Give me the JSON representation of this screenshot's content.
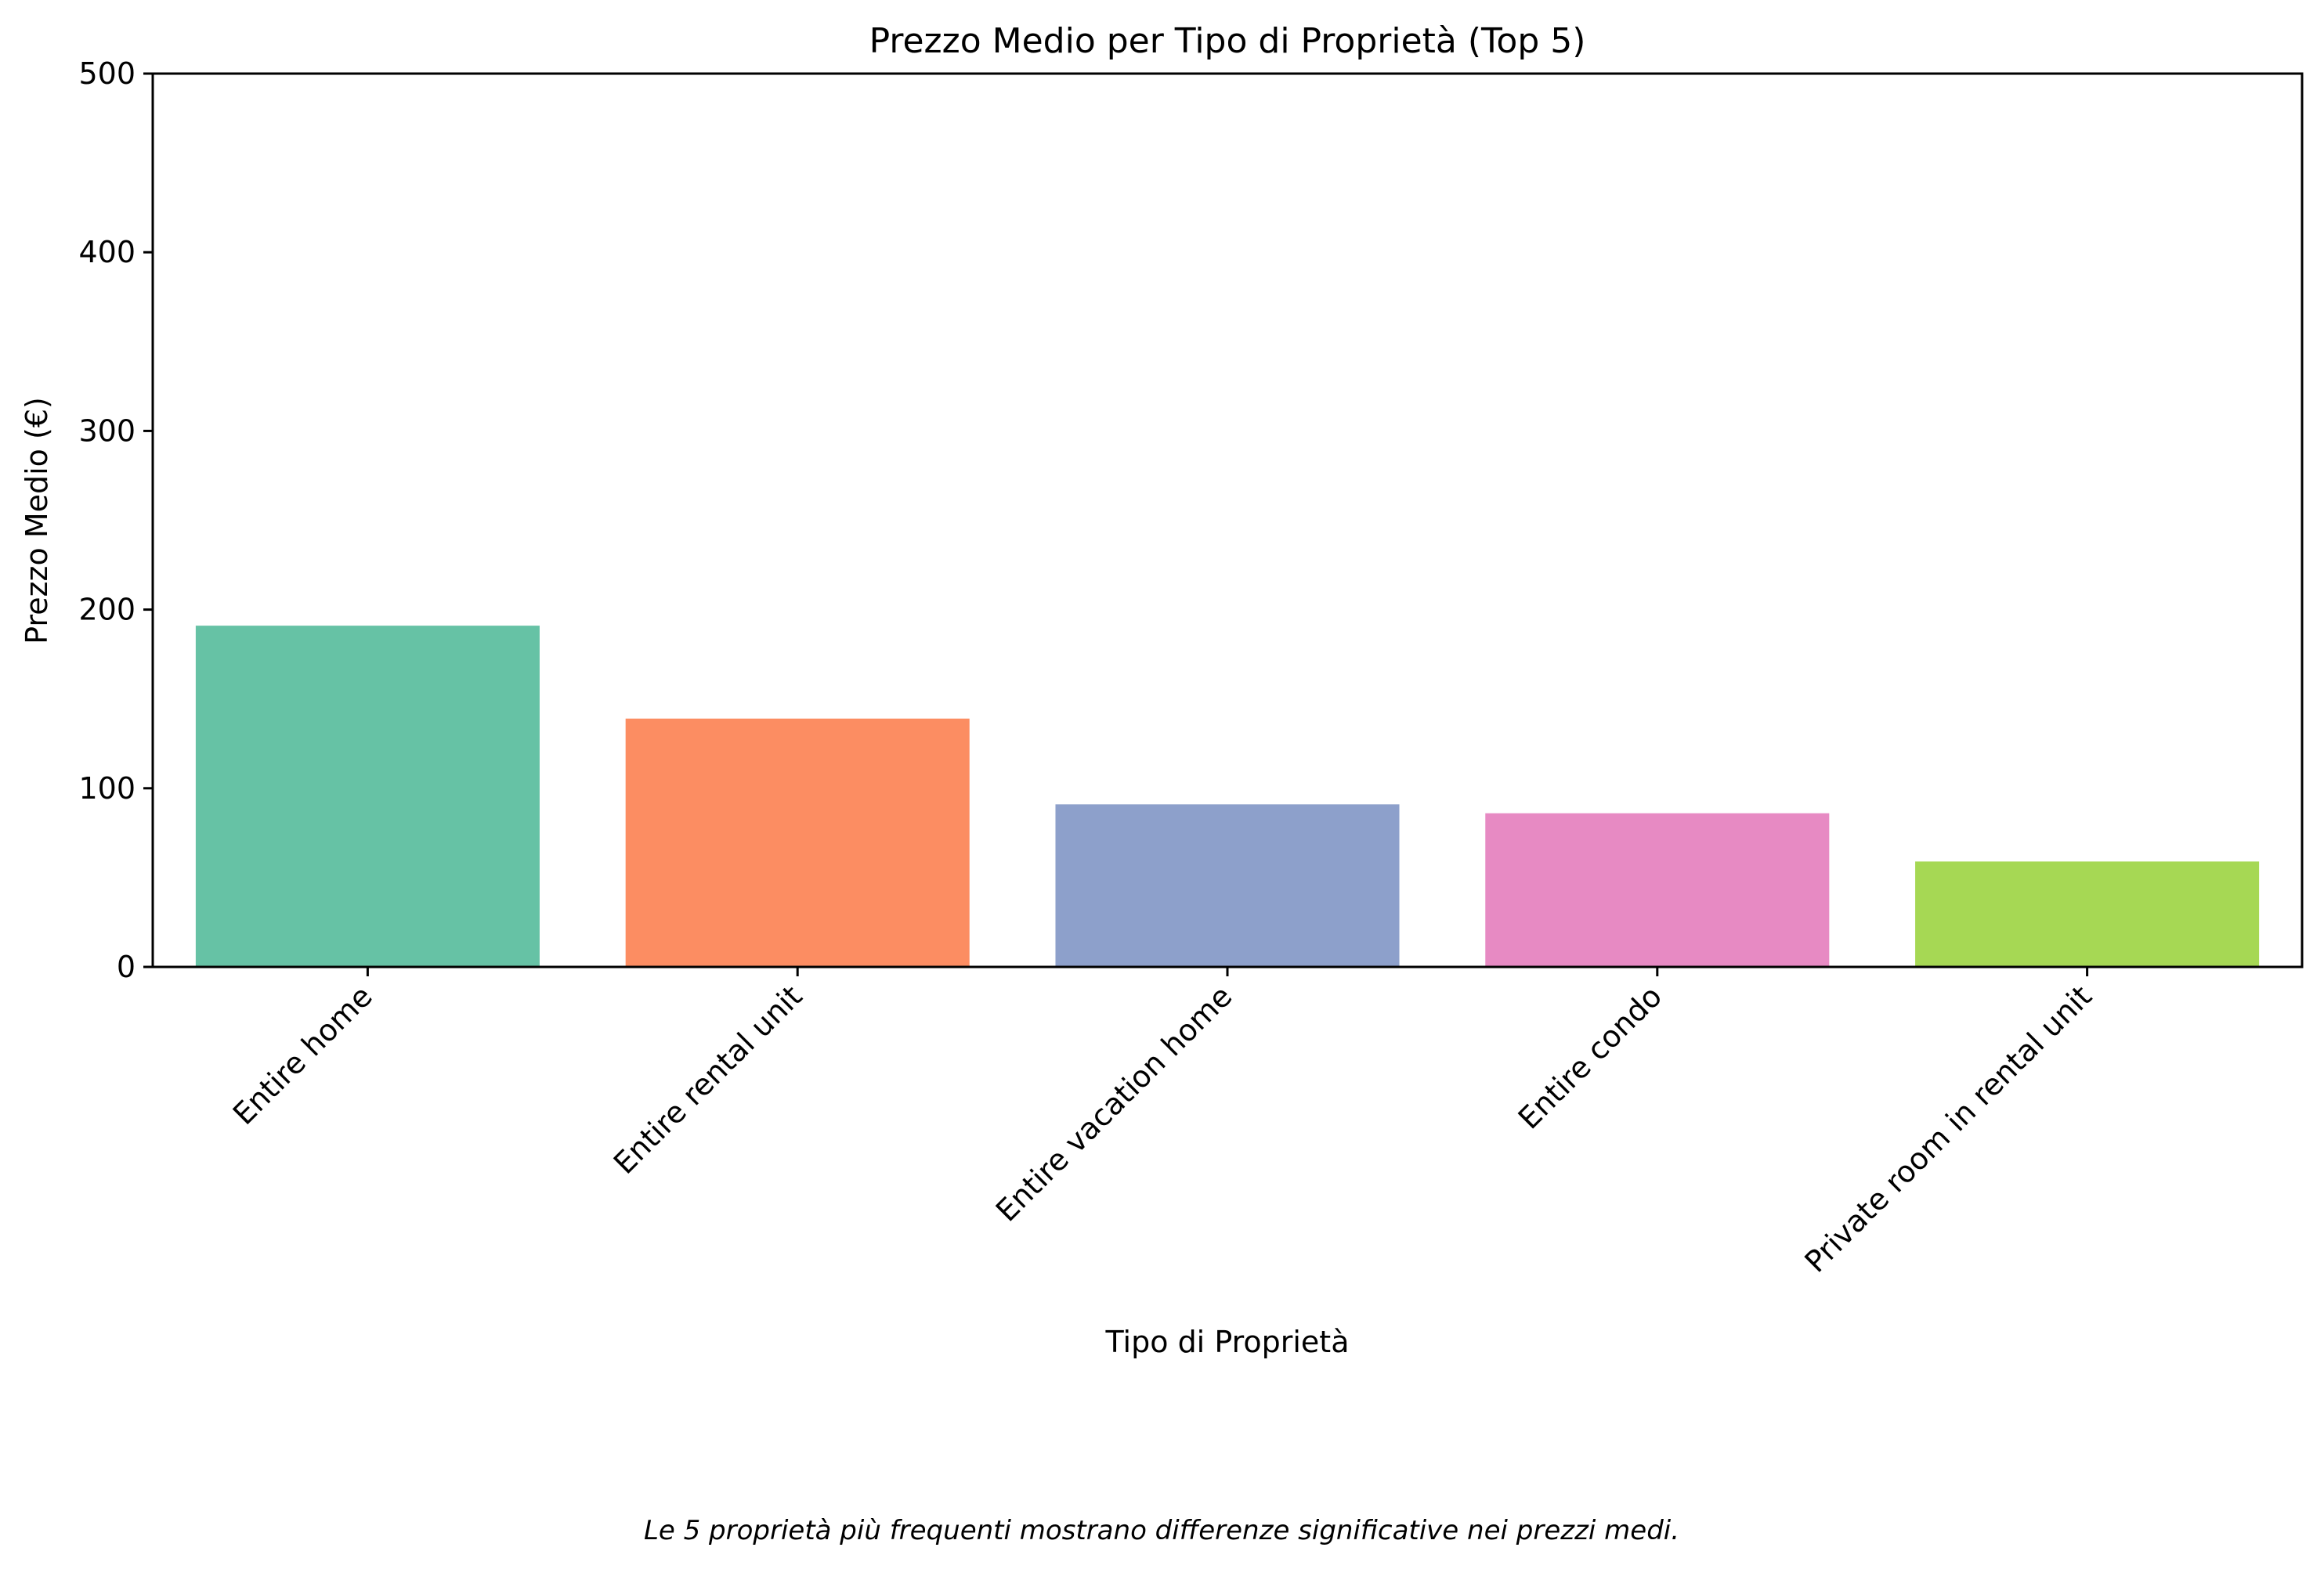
{
  "chart_data": {
    "type": "bar",
    "title": "Prezzo Medio per Tipo di Proprietà (Top 5)",
    "xlabel": "Tipo di Proprietà",
    "ylabel": "Prezzo Medio (€)",
    "categories": [
      "Entire home",
      "Entire rental unit",
      "Entire vacation home",
      "Entire condo",
      "Private room in rental unit"
    ],
    "values": [
      191,
      139,
      91,
      86,
      59
    ],
    "colors": [
      "#66c2a5",
      "#fc8d62",
      "#8da0cb",
      "#e78ac3",
      "#a6d854"
    ],
    "ylim": [
      0,
      500
    ],
    "yticks": [
      0,
      100,
      200,
      300,
      400,
      500
    ],
    "ytick_labels": [
      "0",
      "100",
      "200",
      "300",
      "400",
      "500"
    ],
    "grid": false,
    "legend": "none"
  },
  "caption": "Le 5 proprietà più frequenti mostrano differenze significative nei prezzi medi."
}
